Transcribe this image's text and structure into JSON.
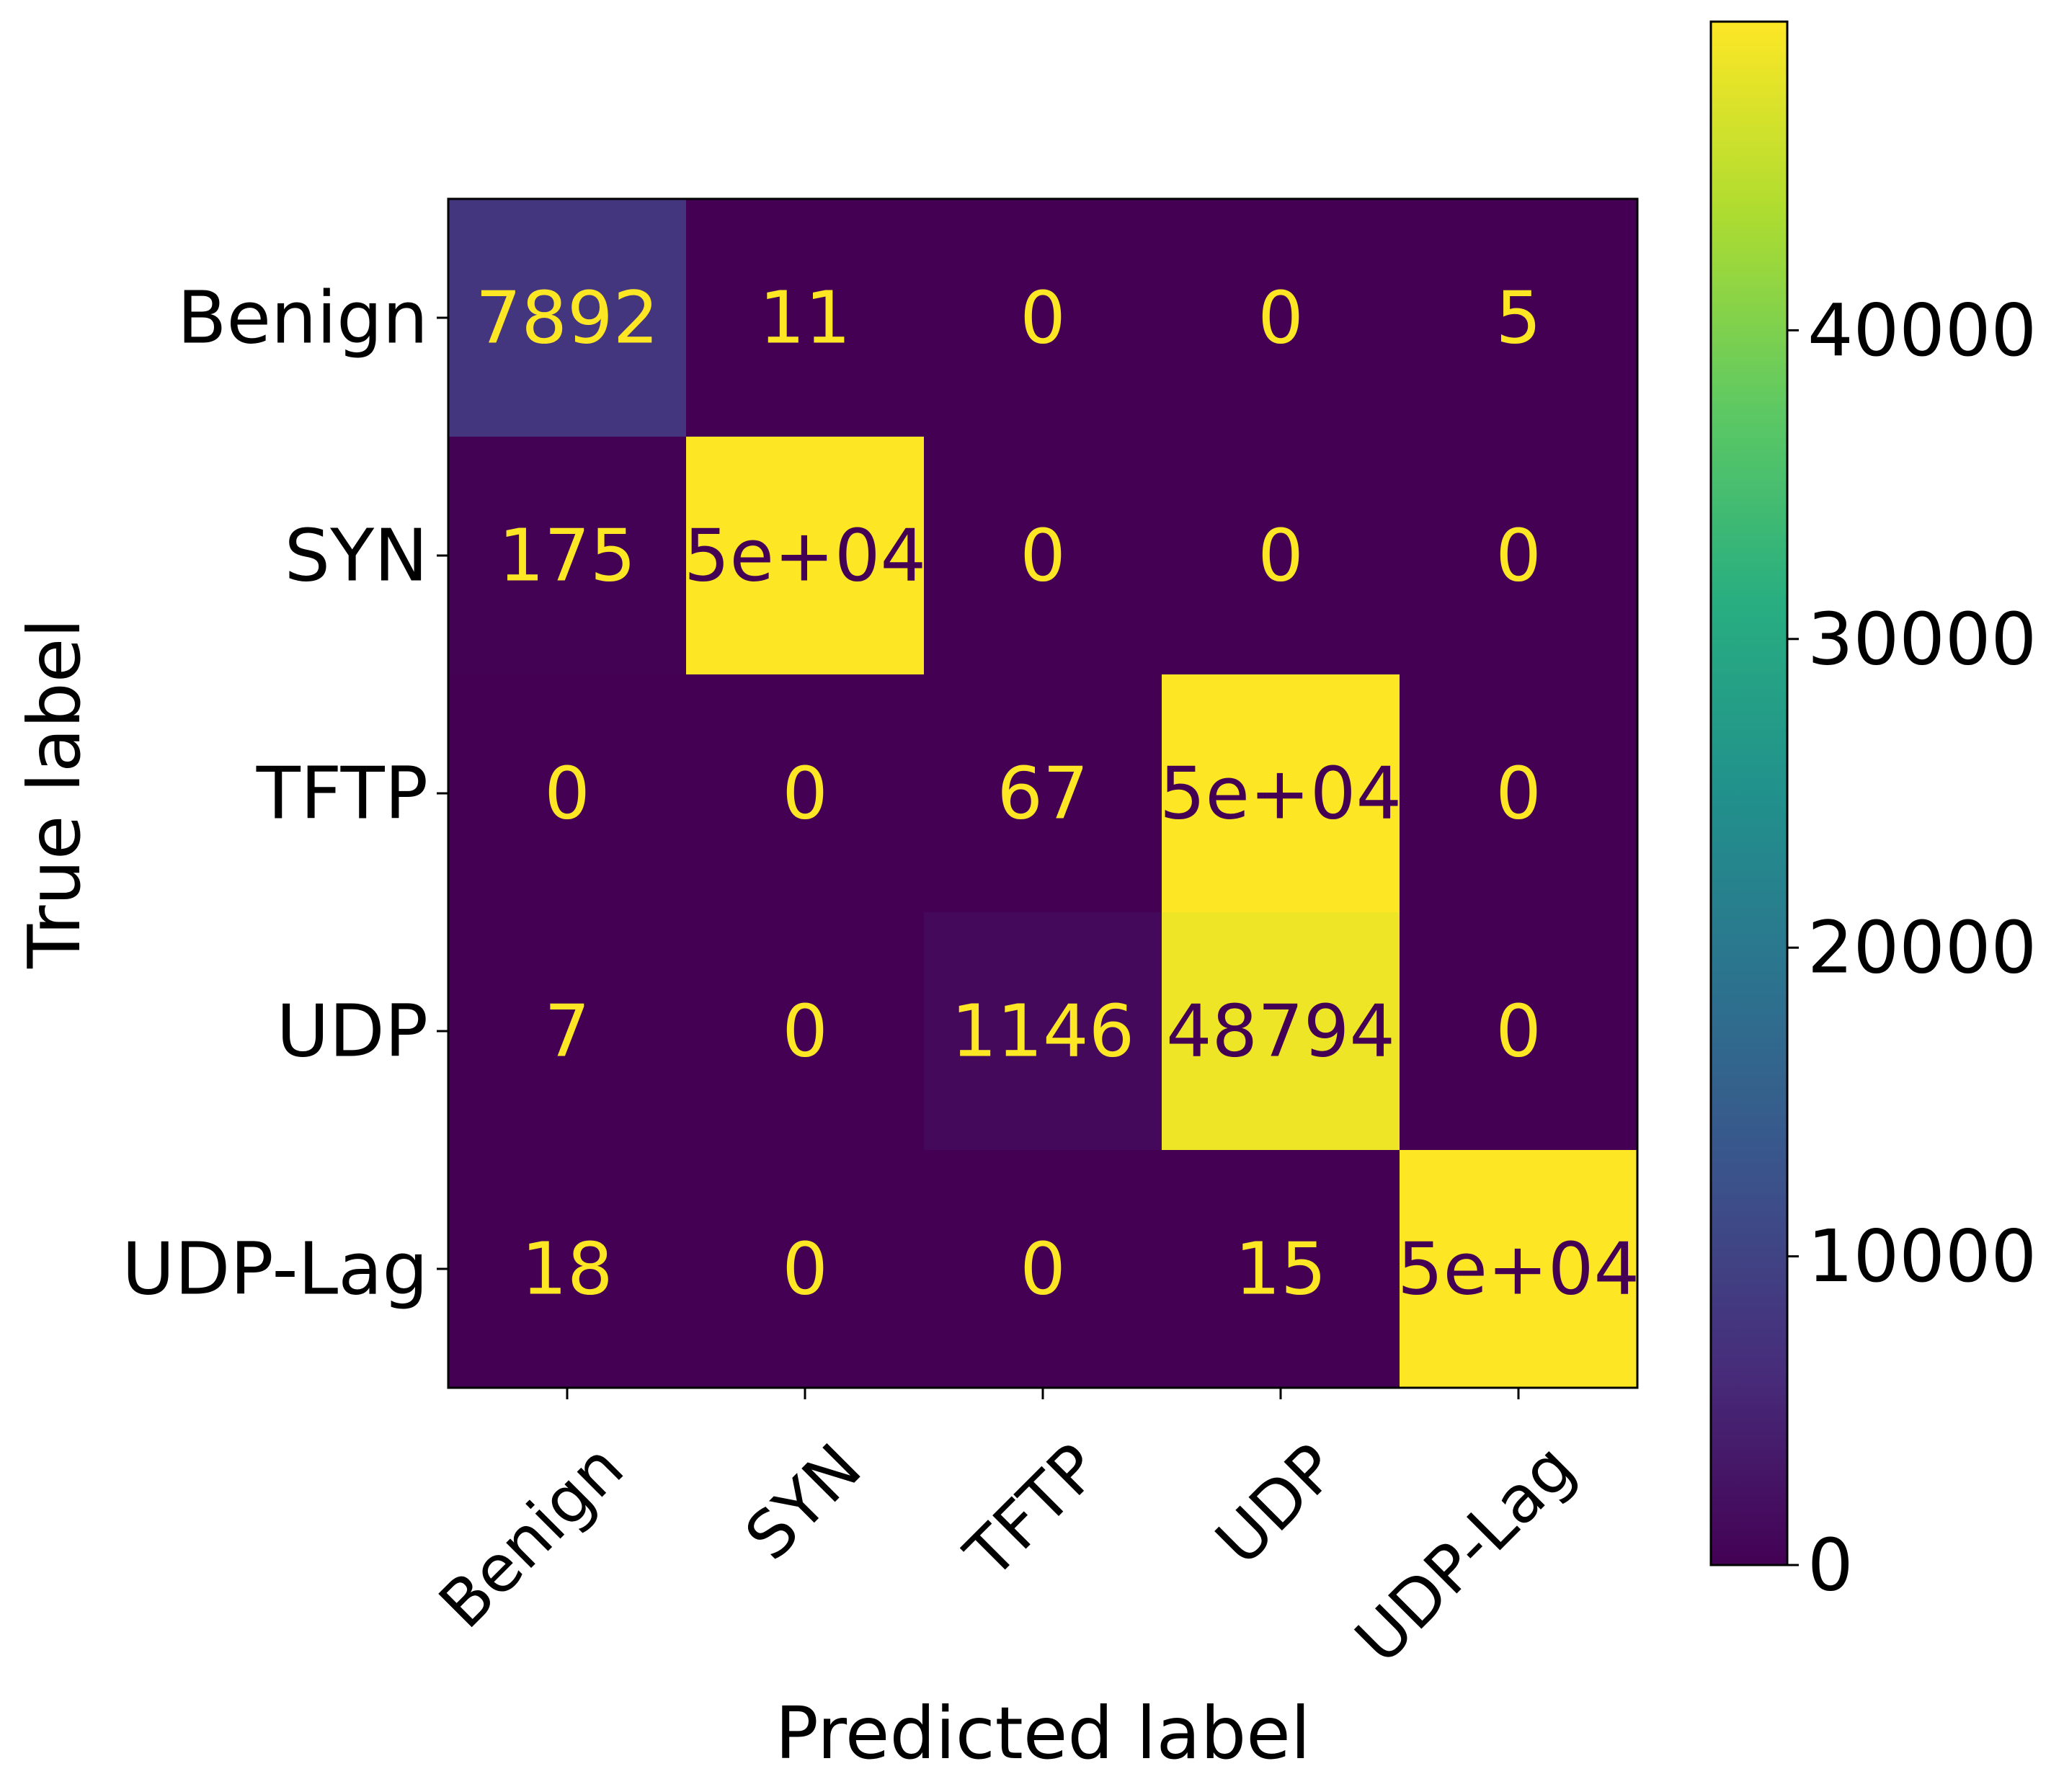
{
  "chart_data": {
    "type": "heatmap",
    "title": "",
    "xlabel": "Predicted label",
    "ylabel": "True label",
    "x_categories": [
      "Benign",
      "SYN",
      "TFTP",
      "UDP",
      "UDP-Lag"
    ],
    "y_categories": [
      "Benign",
      "SYN",
      "TFTP",
      "UDP",
      "UDP-Lag"
    ],
    "matrix": [
      [
        7892,
        11,
        0,
        0,
        5
      ],
      [
        175,
        50000,
        0,
        0,
        0
      ],
      [
        0,
        0,
        67,
        50000,
        0
      ],
      [
        7,
        0,
        1146,
        48794,
        0
      ],
      [
        18,
        0,
        0,
        15,
        50000
      ]
    ],
    "cell_labels": [
      [
        "7892",
        "11",
        "0",
        "0",
        "5"
      ],
      [
        "175",
        "5e+04",
        "0",
        "0",
        "0"
      ],
      [
        "0",
        "0",
        "67",
        "5e+04",
        "0"
      ],
      [
        "7",
        "0",
        "1146",
        "48794",
        "0"
      ],
      [
        "18",
        "0",
        "0",
        "15",
        "5e+04"
      ]
    ],
    "colormap": "viridis",
    "colorbar": {
      "range": [
        0,
        50000
      ],
      "ticks": [
        0,
        10000,
        20000,
        30000,
        40000
      ],
      "tick_labels": [
        "0",
        "10000",
        "20000",
        "30000",
        "40000"
      ]
    },
    "grid": false,
    "text_color_light": "#fde725",
    "text_color_dark": "#440154"
  }
}
